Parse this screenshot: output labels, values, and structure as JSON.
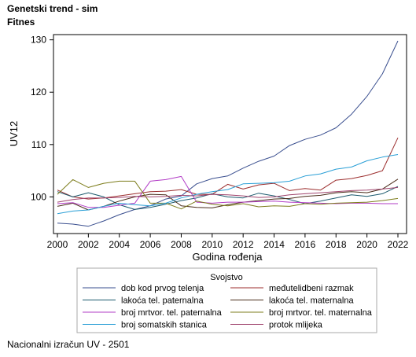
{
  "header": {
    "title": "Genetski trend - sim",
    "subtitle": "Fitnes"
  },
  "footer": {
    "note": "Nacionalni izračun UV - 2501"
  },
  "chart_data": {
    "type": "line",
    "xlabel": "Godina rođenja",
    "ylabel": "UV12",
    "xlim": [
      2000,
      2022
    ],
    "ylim": [
      93,
      131
    ],
    "x_ticks": [
      2000,
      2002,
      2004,
      2006,
      2008,
      2010,
      2012,
      2014,
      2016,
      2018,
      2020,
      2022
    ],
    "y_ticks": [
      100,
      110,
      120,
      130
    ],
    "grid": false,
    "legend_title": "Svojstvo",
    "legend_position": "bottom",
    "x": [
      2000,
      2001,
      2002,
      2003,
      2004,
      2005,
      2006,
      2007,
      2008,
      2009,
      2010,
      2011,
      2012,
      2013,
      2014,
      2015,
      2016,
      2017,
      2018,
      2019,
      2020,
      2021,
      2022
    ],
    "series": [
      {
        "name": "dob kod prvog telenja",
        "color": "#3a4f8f",
        "values": [
          95.0,
          94.8,
          94.4,
          95.4,
          96.6,
          97.6,
          98.3,
          99.6,
          100.2,
          102.5,
          103.5,
          104.0,
          105.5,
          106.8,
          107.8,
          109.8,
          111.0,
          111.8,
          113.2,
          115.8,
          119.2,
          123.5,
          129.8
        ]
      },
      {
        "name": "međutelidbeni razmak",
        "color": "#9c2e2e",
        "values": [
          101.3,
          100.0,
          99.6,
          99.8,
          100.2,
          100.6,
          101.0,
          101.1,
          101.4,
          100.5,
          100.5,
          102.4,
          101.5,
          102.3,
          102.6,
          101.2,
          101.6,
          101.3,
          103.2,
          103.5,
          104.1,
          105.0,
          111.3
        ]
      },
      {
        "name": "lakoća tel. paternalna",
        "color": "#1c5a6e",
        "values": [
          101.0,
          100.0,
          100.8,
          100.0,
          98.5,
          97.6,
          98.0,
          98.6,
          99.3,
          99.8,
          100.6,
          100.0,
          99.8,
          100.7,
          100.2,
          99.5,
          98.7,
          99.2,
          99.8,
          100.4,
          100.1,
          100.6,
          102.0
        ]
      },
      {
        "name": "lakoća tel. maternalna",
        "color": "#4a2c1a",
        "values": [
          98.2,
          98.8,
          97.5,
          98.2,
          99.2,
          100.0,
          100.5,
          100.4,
          98.3,
          98.0,
          97.9,
          98.5,
          99.0,
          99.3,
          99.6,
          99.7,
          100.1,
          100.3,
          100.8,
          101.0,
          100.8,
          101.5,
          103.4
        ]
      },
      {
        "name": "broj mrtvor. tel. paternalna",
        "color": "#b23cc6",
        "values": [
          98.7,
          98.9,
          98.0,
          98.0,
          98.4,
          98.8,
          103.0,
          103.3,
          103.9,
          99.0,
          98.8,
          99.0,
          99.0,
          99.1,
          99.2,
          99.0,
          98.9,
          98.8,
          98.7,
          98.8,
          98.8,
          98.7,
          98.7
        ]
      },
      {
        "name": "broj mrtvor. tel. maternalna",
        "color": "#7d7d1c",
        "values": [
          100.5,
          103.3,
          101.8,
          102.6,
          103.0,
          103.0,
          98.8,
          98.8,
          97.7,
          99.2,
          98.6,
          98.3,
          98.7,
          98.1,
          98.3,
          98.2,
          98.7,
          98.6,
          98.8,
          98.9,
          99.0,
          99.3,
          99.7
        ]
      },
      {
        "name": "broj somatskih stanica",
        "color": "#2a9fd6",
        "values": [
          96.8,
          97.3,
          97.5,
          98.2,
          98.8,
          98.5,
          98.3,
          98.8,
          99.8,
          100.5,
          101.0,
          101.4,
          102.5,
          102.6,
          102.7,
          103.0,
          104.0,
          104.4,
          105.3,
          105.7,
          106.9,
          107.6,
          108.1
        ]
      },
      {
        "name": "protok mlijeka",
        "color": "#a0456e",
        "values": [
          99.0,
          99.5,
          99.8,
          99.8,
          99.9,
          100.1,
          100.0,
          100.1,
          100.3,
          100.2,
          100.5,
          100.4,
          100.2,
          99.9,
          100.0,
          100.4,
          100.6,
          100.8,
          101.0,
          101.2,
          101.3,
          101.5,
          101.8
        ]
      }
    ]
  }
}
